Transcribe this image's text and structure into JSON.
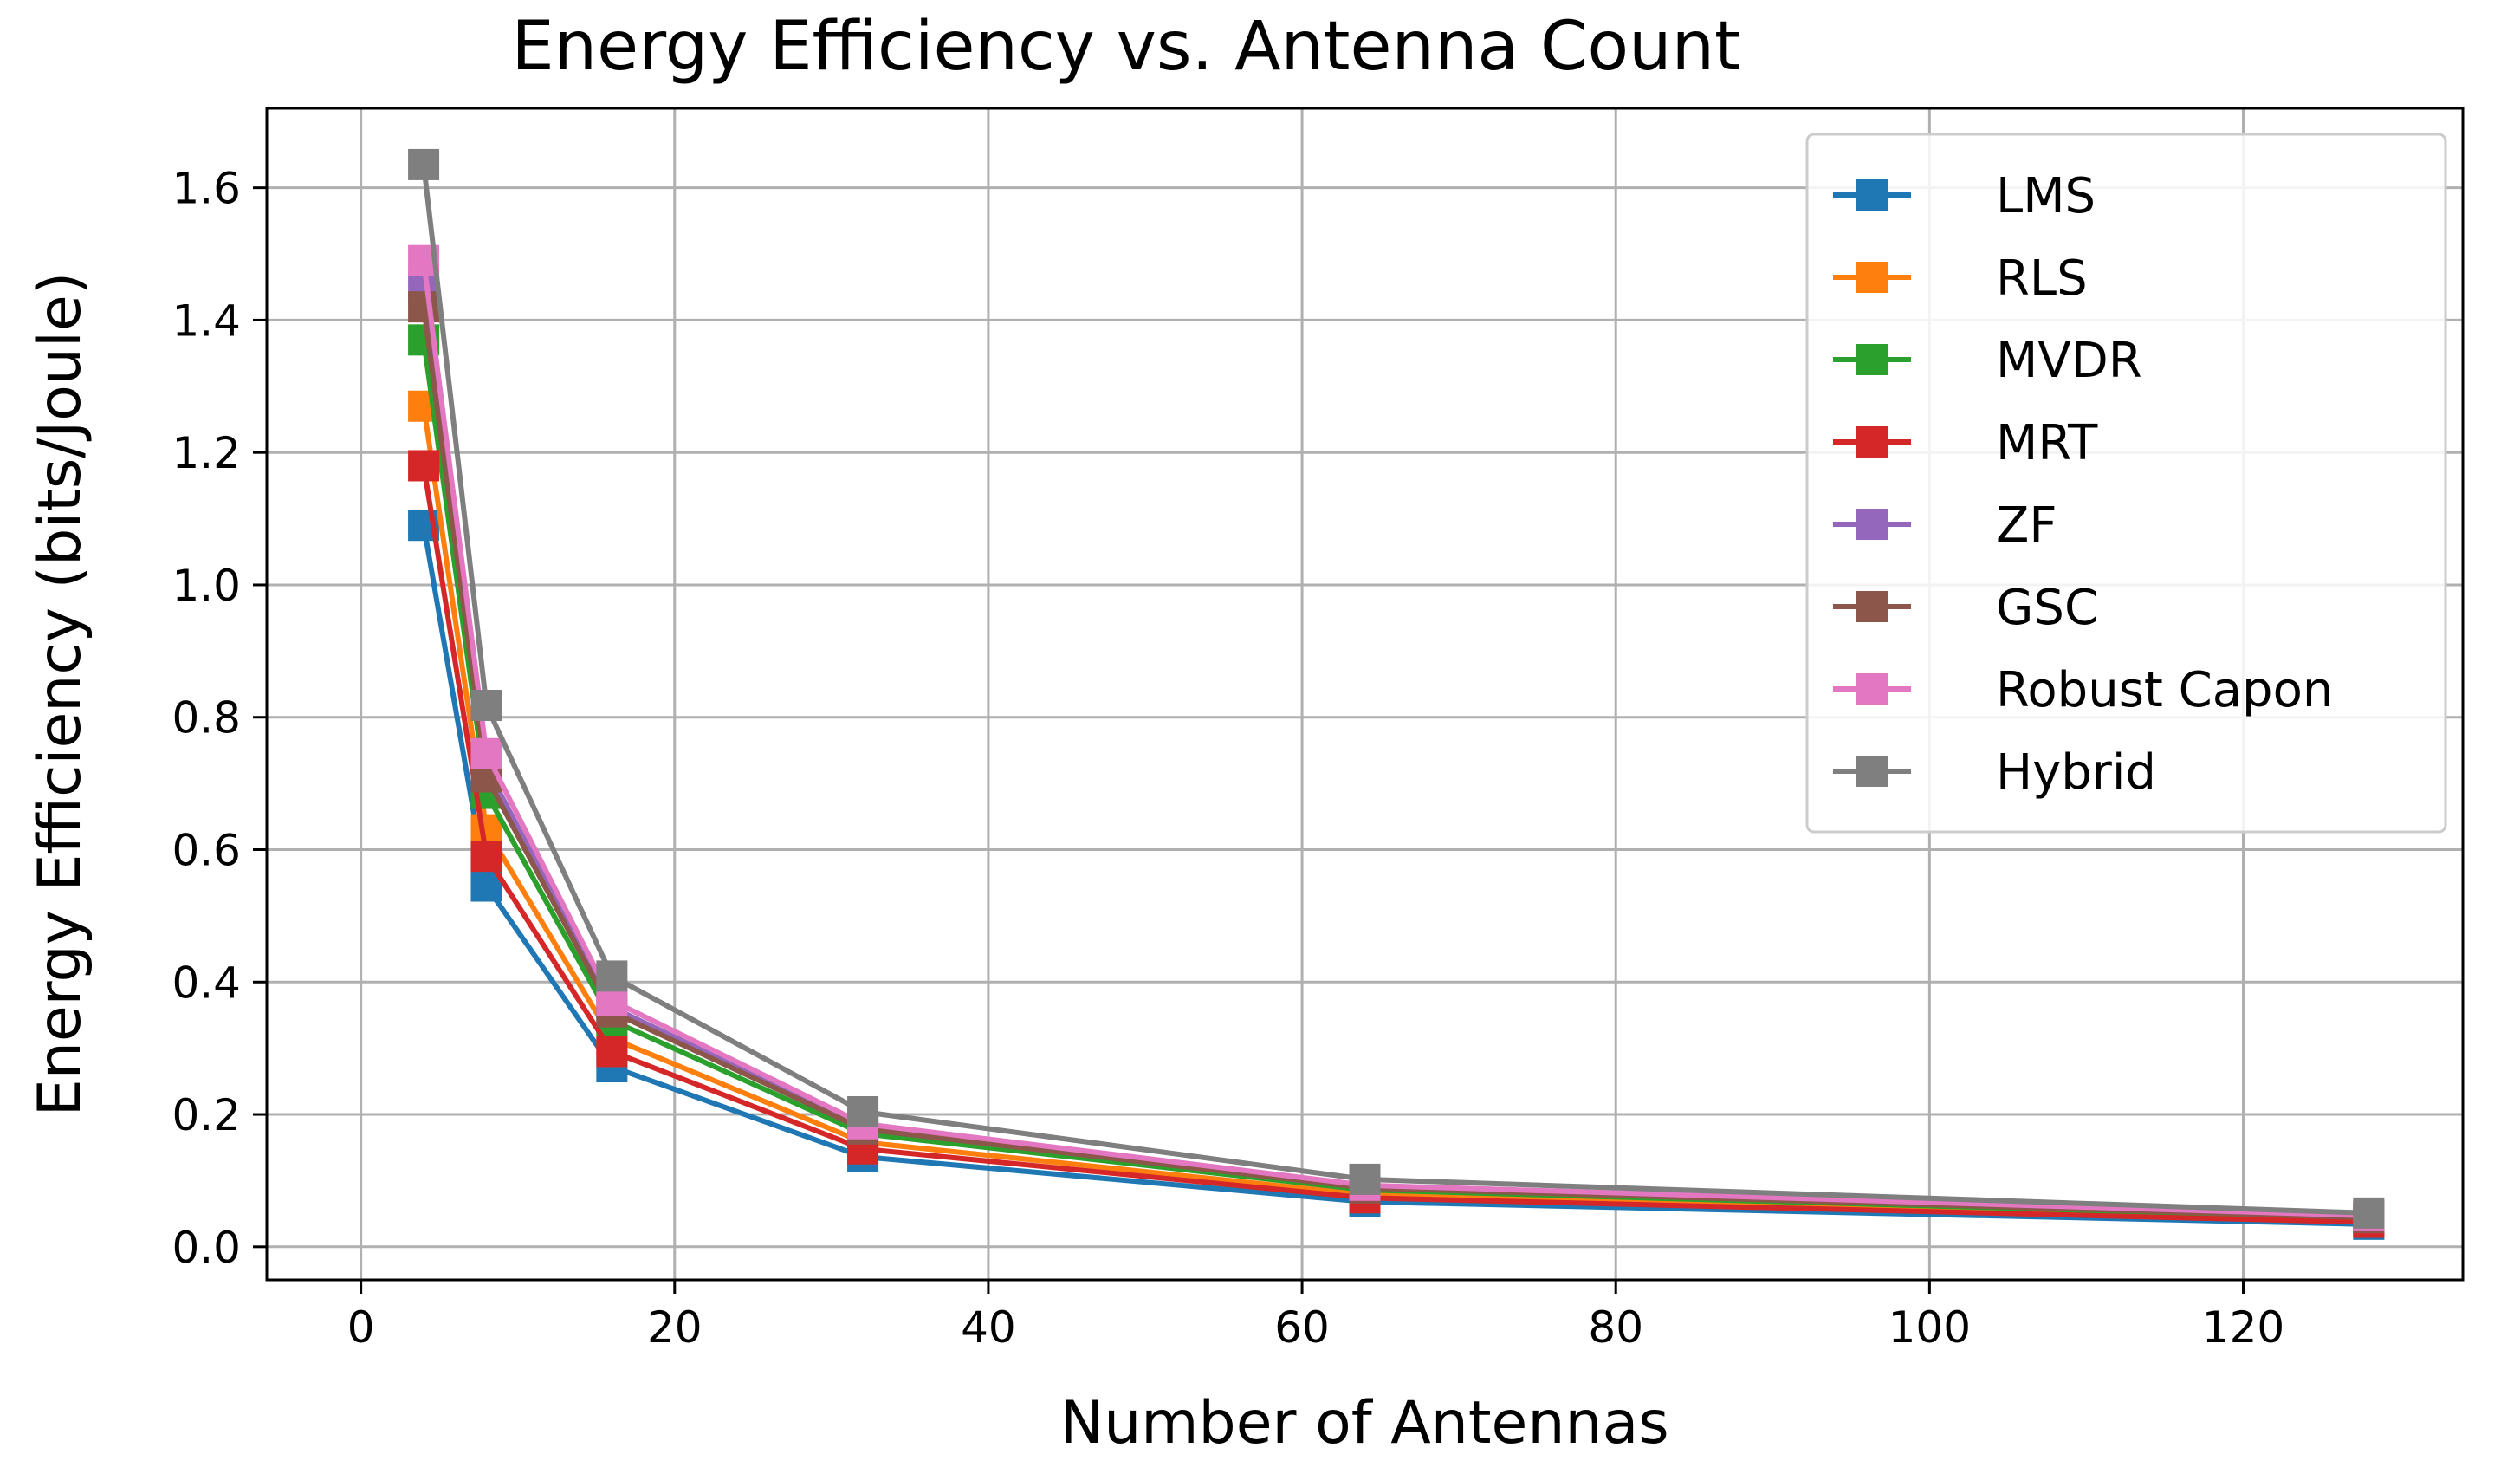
{
  "chart_data": {
    "type": "line",
    "title": "Energy Efficiency vs. Antenna Count",
    "xlabel": "Number of Antennas",
    "ylabel": "Energy Efficiency (bits/Joule)",
    "xlim": [
      -6,
      134
    ],
    "ylim": [
      -0.05,
      1.72
    ],
    "grid": true,
    "legend_position": "top-right",
    "x": [
      4,
      8,
      16,
      32,
      64,
      128
    ],
    "x_ticks": [
      0,
      20,
      40,
      60,
      80,
      100,
      120
    ],
    "x_tick_labels": [
      "0",
      "20",
      "40",
      "60",
      "80",
      "100",
      "120"
    ],
    "y_ticks": [
      0.0,
      0.2,
      0.4,
      0.6,
      0.8,
      1.0,
      1.2,
      1.4,
      1.6
    ],
    "y_tick_labels": [
      "0.0",
      "0.2",
      "0.4",
      "0.6",
      "0.8",
      "1.0",
      "1.2",
      "1.4",
      "1.6"
    ],
    "series": [
      {
        "name": "LMS",
        "color": "#1f77b4",
        "values": [
          1.09,
          0.545,
          0.272,
          0.136,
          0.068,
          0.034
        ]
      },
      {
        "name": "RLS",
        "color": "#ff7f0e",
        "values": [
          1.27,
          0.63,
          0.315,
          0.158,
          0.079,
          0.039
        ]
      },
      {
        "name": "MVDR",
        "color": "#2ca02c",
        "values": [
          1.37,
          0.685,
          0.342,
          0.171,
          0.086,
          0.043
        ]
      },
      {
        "name": "MRT",
        "color": "#d62728",
        "values": [
          1.18,
          0.59,
          0.295,
          0.148,
          0.074,
          0.037
        ]
      },
      {
        "name": "ZF",
        "color": "#9467bd",
        "values": [
          1.45,
          0.725,
          0.362,
          0.181,
          0.091,
          0.045
        ]
      },
      {
        "name": "GSC",
        "color": "#8c564b",
        "values": [
          1.42,
          0.71,
          0.355,
          0.178,
          0.089,
          0.044
        ]
      },
      {
        "name": "Robust Capon",
        "color": "#e377c2",
        "values": [
          1.49,
          0.745,
          0.372,
          0.186,
          0.093,
          0.047
        ]
      },
      {
        "name": "Hybrid",
        "color": "#7f7f7f",
        "values": [
          1.635,
          0.818,
          0.409,
          0.204,
          0.102,
          0.051
        ]
      }
    ]
  }
}
